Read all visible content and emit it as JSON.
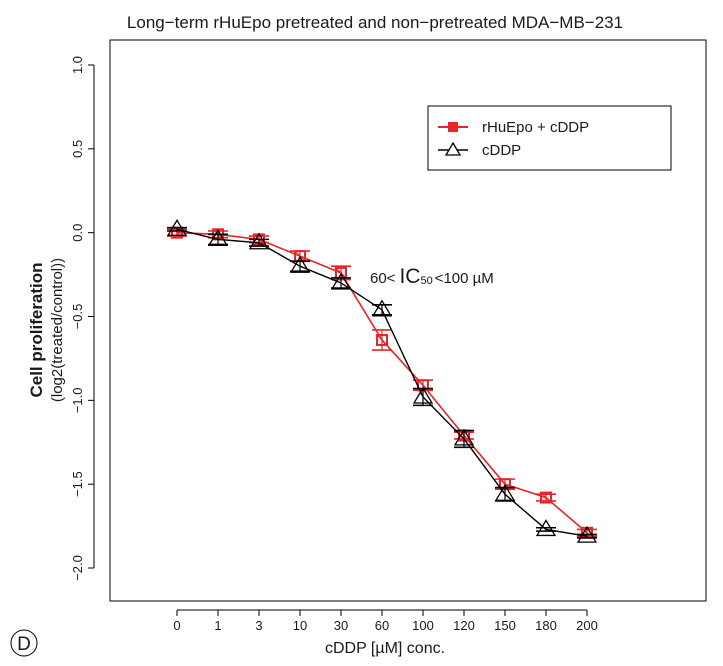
{
  "chart_data": {
    "type": "line",
    "title": "Long−term rHuEpo pretreated and non−pretreated MDA−MB−231",
    "xlabel": "cDDP [µM] conc.",
    "ylabel": {
      "main": "Cell proliferation",
      "sub": "(log2(treated/control))"
    },
    "categories": [
      "0",
      "1",
      "3",
      "10",
      "30",
      "60",
      "100",
      "120",
      "150",
      "180",
      "200"
    ],
    "ylim": [
      -2.0,
      1.0
    ],
    "yticks": [
      "1.0",
      "0.5",
      "0.0",
      "−0.5",
      "−1.0",
      "−1.5",
      "−2.0"
    ],
    "ytick_values": [
      1.0,
      0.5,
      0.0,
      -0.5,
      -1.0,
      -1.5,
      -2.0
    ],
    "series": [
      {
        "name": "rHuEpo + cDDP",
        "color": "#e8242a",
        "marker": "square",
        "values": [
          0.0,
          -0.01,
          -0.04,
          -0.14,
          -0.24,
          -0.64,
          -0.91,
          -1.21,
          -1.5,
          -1.58,
          -1.79
        ],
        "errors": [
          0.02,
          0.02,
          0.02,
          0.03,
          0.04,
          0.06,
          0.03,
          0.02,
          0.03,
          0.02,
          0.02
        ]
      },
      {
        "name": "cDDP",
        "color": "#000000",
        "marker": "triangle",
        "values": [
          0.02,
          -0.04,
          -0.06,
          -0.2,
          -0.3,
          -0.46,
          -0.98,
          -1.23,
          -1.56,
          -1.77,
          -1.81
        ],
        "errors": [
          0.01,
          0.03,
          0.02,
          0.03,
          0.03,
          0.03,
          0.05,
          0.05,
          0.04,
          0.01,
          0.01
        ]
      }
    ],
    "legend": {
      "position": "top-right"
    },
    "annotation": {
      "prefix": "60<",
      "main": "IC",
      "sub": "50",
      "suffix": "<100 µM"
    },
    "panel_label": "D",
    "grid": false
  }
}
